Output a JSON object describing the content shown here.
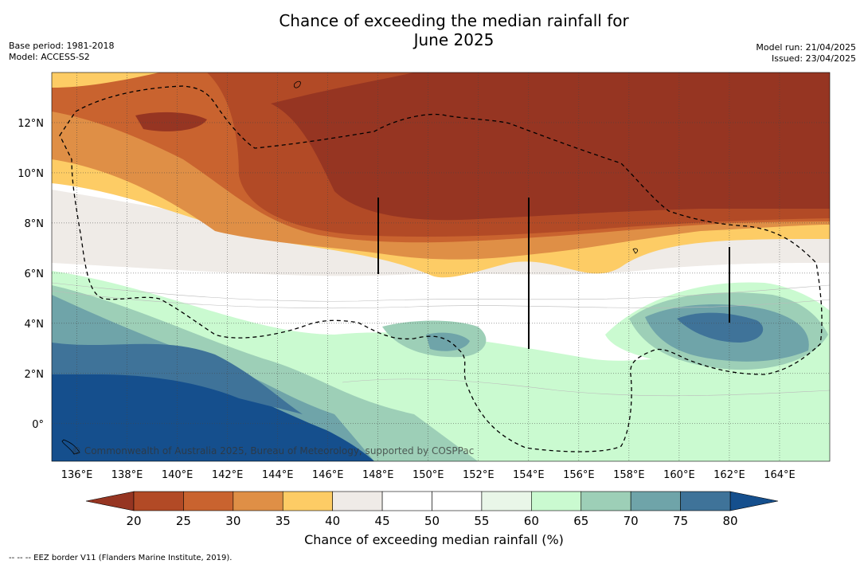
{
  "title": {
    "line1": "Chance of exceeding the median rainfall for",
    "line2": "June 2025"
  },
  "meta_left": {
    "base_period": "Base period: 1981-2018",
    "model": "Model: ACCESS-S2"
  },
  "meta_right": {
    "model_run": "Model run: 21/04/2025",
    "issued": "Issued: 23/04/2025"
  },
  "map": {
    "longitude_labels": [
      "136°E",
      "138°E",
      "140°E",
      "142°E",
      "144°E",
      "146°E",
      "148°E",
      "150°E",
      "152°E",
      "154°E",
      "156°E",
      "158°E",
      "160°E",
      "162°E",
      "164°E"
    ],
    "latitude_labels": [
      "12°N",
      "10°N",
      "8°N",
      "6°N",
      "4°N",
      "2°N",
      "0°"
    ],
    "lon_range": [
      135,
      166
    ],
    "lat_range": [
      -1.5,
      14
    ],
    "copyright": "© Commonwealth of Australia 2025, Bureau of Meteorology, supported by COSPPac"
  },
  "colorbar": {
    "ticks": [
      "20",
      "25",
      "30",
      "35",
      "40",
      "45",
      "50",
      "55",
      "60",
      "65",
      "70",
      "75",
      "80"
    ],
    "colors": [
      "#b24a26",
      "#c9632f",
      "#df8f46",
      "#fdcc65",
      "#efebe7",
      "#ffffff",
      "#ffffff",
      "#e9f6e8",
      "#cafad0",
      "#9dcfb7",
      "#6fa4a9",
      "#3f7399",
      "#154f8d"
    ],
    "under_color": "#963522",
    "over_color": "#154f8d",
    "label": "Chance of exceeding median rainfall (%)"
  },
  "footnote": "--  --  -- EEZ border V11 (Flanders Marine Institute, 2019)."
}
